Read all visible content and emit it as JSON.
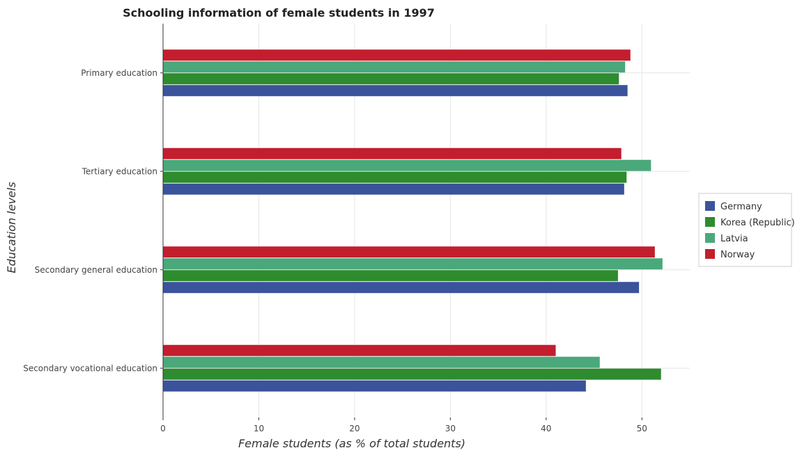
{
  "chart_data": {
    "type": "bar",
    "orientation": "horizontal",
    "title": "Schooling information of female students in 1997",
    "xlabel": "Female students (as % of total students)",
    "ylabel": "Education levels",
    "xlim": [
      0,
      55
    ],
    "xticks": [
      0,
      10,
      20,
      30,
      40,
      50
    ],
    "grid": true,
    "legend_position": "right",
    "categories": [
      "Primary education",
      "Tertiary education",
      "Secondary general education",
      "Secondary vocational education"
    ],
    "series": [
      {
        "name": "Germany",
        "color": "#3a539b",
        "values": [
          48.5,
          48.15,
          49.7,
          44.15
        ]
      },
      {
        "name": "Korea (Republic)",
        "color": "#2e8b2e",
        "values": [
          47.6,
          48.4,
          47.5,
          52.0
        ]
      },
      {
        "name": "Latvia",
        "color": "#4aa87a",
        "values": [
          48.25,
          50.95,
          52.15,
          45.6
        ]
      },
      {
        "name": "Norway",
        "color": "#c21e2e",
        "values": [
          48.8,
          47.85,
          51.35,
          41.0
        ]
      }
    ]
  }
}
